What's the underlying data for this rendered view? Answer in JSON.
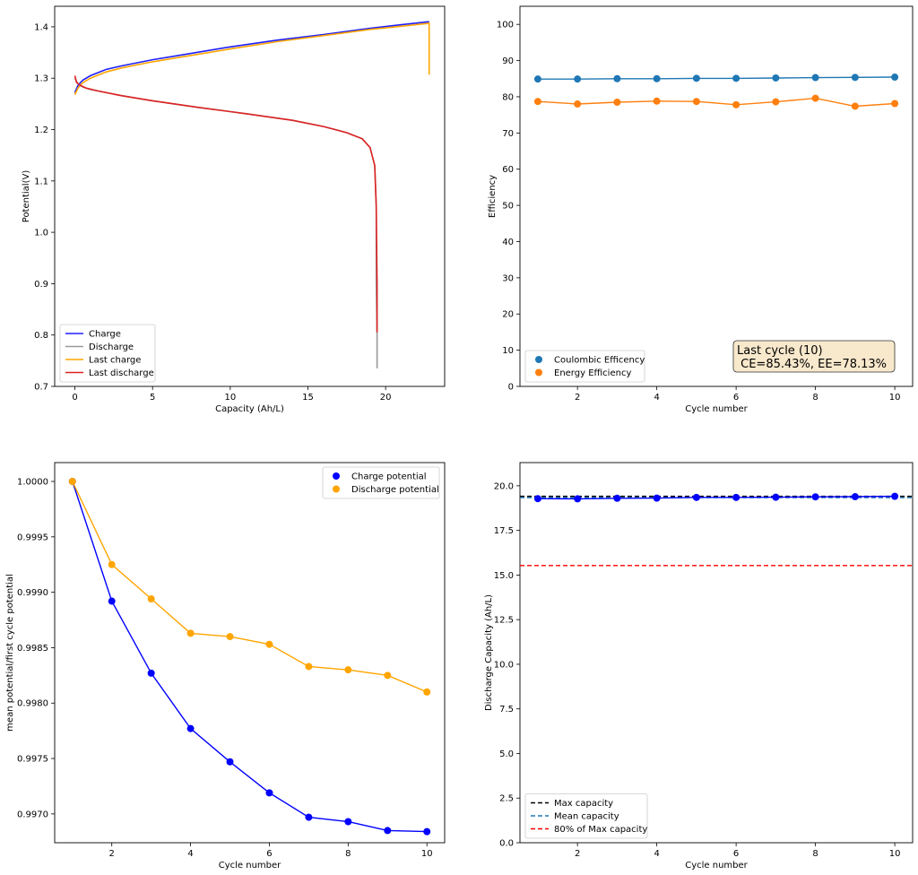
{
  "chart_data": [
    {
      "type": "line",
      "xlabel": "Capacity (Ah/L)",
      "ylabel": "Potential(V)",
      "xlim": [
        -1.3,
        23.8
      ],
      "ylim": [
        0.7,
        1.44
      ],
      "xticks": [
        "0",
        "5",
        "10",
        "15",
        "20"
      ],
      "yticks": [
        "0.7",
        "0.8",
        "0.9",
        "1.0",
        "1.1",
        "1.2",
        "1.3",
        "1.4"
      ],
      "legend_position": "lower-left",
      "series": [
        {
          "name": "Charge",
          "color": "#1f1fff",
          "x": [
            0,
            0.2,
            0.5,
            1,
            2,
            3,
            5,
            7,
            10,
            13,
            16,
            19,
            21,
            22.8
          ],
          "y": [
            1.272,
            1.286,
            1.296,
            1.305,
            1.317,
            1.324,
            1.336,
            1.346,
            1.361,
            1.374,
            1.385,
            1.397,
            1.404,
            1.41
          ]
        },
        {
          "name": "Discharge",
          "color": "#999999",
          "x": [
            0,
            0.2,
            0.5,
            1,
            3,
            5,
            8,
            11,
            14,
            16,
            17.5,
            18.5,
            19.0,
            19.3,
            19.4,
            19.4,
            19.45,
            19.45
          ],
          "y": [
            1.3,
            1.289,
            1.283,
            1.278,
            1.266,
            1.256,
            1.243,
            1.231,
            1.218,
            1.206,
            1.194,
            1.182,
            1.165,
            1.13,
            1.05,
            0.9,
            0.8,
            0.735
          ]
        },
        {
          "name": "Last charge",
          "color": "#ffa500",
          "x": [
            0,
            0.2,
            0.5,
            1,
            2,
            3,
            5,
            7,
            10,
            13,
            16,
            19,
            21,
            22.8,
            22.8
          ],
          "y": [
            1.268,
            1.281,
            1.291,
            1.3,
            1.312,
            1.32,
            1.332,
            1.342,
            1.357,
            1.371,
            1.383,
            1.395,
            1.401,
            1.407,
            1.307
          ]
        },
        {
          "name": "Last discharge",
          "color": "#dd2222",
          "x": [
            0,
            0.1,
            0.3,
            0.7,
            1.5,
            3,
            5,
            8,
            11,
            14,
            16,
            17.5,
            18.5,
            19.0,
            19.3,
            19.4,
            19.45,
            19.45
          ],
          "y": [
            1.305,
            1.292,
            1.287,
            1.281,
            1.275,
            1.266,
            1.256,
            1.243,
            1.231,
            1.218,
            1.206,
            1.194,
            1.182,
            1.165,
            1.13,
            1.05,
            0.9,
            0.805
          ]
        }
      ]
    },
    {
      "type": "line",
      "xlabel": "Cycle number",
      "ylabel": "Efficiency",
      "xlim": [
        0.55,
        10.45
      ],
      "ylim": [
        0,
        105
      ],
      "xticks": [
        "2",
        "4",
        "6",
        "8",
        "10"
      ],
      "yticks": [
        "0",
        "10",
        "20",
        "30",
        "40",
        "50",
        "60",
        "70",
        "80",
        "90",
        "100"
      ],
      "legend_position": "lower-left",
      "annotation": "Last cycle (10)\n CE=85.43%, EE=78.13%",
      "annotation_lines": [
        "Last cycle (10)",
        " CE=85.43%, EE=78.13%"
      ],
      "annotation_bg": "#f8e8cc",
      "series": [
        {
          "name": "Coulombic Efficency",
          "color": "#1f77b4",
          "x": [
            1,
            2,
            3,
            4,
            5,
            6,
            7,
            8,
            9,
            10
          ],
          "y": [
            84.9,
            84.9,
            85.0,
            85.0,
            85.1,
            85.1,
            85.2,
            85.3,
            85.35,
            85.43
          ]
        },
        {
          "name": "Energy Efficiency",
          "color": "#ff7f0e",
          "x": [
            1,
            2,
            3,
            4,
            5,
            6,
            7,
            8,
            9,
            10
          ],
          "y": [
            78.7,
            78.0,
            78.5,
            78.8,
            78.7,
            77.8,
            78.6,
            79.6,
            77.4,
            78.13
          ]
        }
      ]
    },
    {
      "type": "line",
      "xlabel": "Cycle number",
      "ylabel": "mean potential/first cycle potential",
      "xlim": [
        0.55,
        10.45
      ],
      "ylim": [
        0.99674,
        1.00017
      ],
      "xticks": [
        "2",
        "4",
        "6",
        "8",
        "10"
      ],
      "yticks": [
        "0.9970",
        "0.9975",
        "0.9980",
        "0.9985",
        "0.9990",
        "0.9995",
        "1.0000"
      ],
      "legend_position": "top-right",
      "series": [
        {
          "name": "Charge potential",
          "color": "#0000ff",
          "x": [
            1,
            2,
            3,
            4,
            5,
            6,
            7,
            8,
            9,
            10
          ],
          "y": [
            1.0,
            0.99892,
            0.99827,
            0.99777,
            0.99747,
            0.99719,
            0.99697,
            0.99693,
            0.99685,
            0.99684
          ]
        },
        {
          "name": "Discharge potential",
          "color": "#ffa500",
          "x": [
            1,
            2,
            3,
            4,
            5,
            6,
            7,
            8,
            9,
            10
          ],
          "y": [
            1.0,
            0.99925,
            0.99894,
            0.99863,
            0.9986,
            0.99853,
            0.99833,
            0.9983,
            0.99825,
            0.9981
          ]
        }
      ]
    },
    {
      "type": "line",
      "xlabel": "Cycle number",
      "ylabel": "Discharge Capacity (Ah/L)",
      "xlim": [
        0.55,
        10.45
      ],
      "ylim": [
        0,
        21.3
      ],
      "xticks": [
        "2",
        "4",
        "6",
        "8",
        "10"
      ],
      "yticks": [
        "0.0",
        "2.5",
        "5.0",
        "7.5",
        "10.0",
        "12.5",
        "15.0",
        "17.5",
        "20.0"
      ],
      "legend_position": "lower-left",
      "series": [
        {
          "name": "",
          "color": "#0000ff",
          "markers": true,
          "x": [
            1,
            2,
            3,
            4,
            5,
            6,
            7,
            8,
            9,
            10
          ],
          "y": [
            19.28,
            19.27,
            19.3,
            19.31,
            19.35,
            19.35,
            19.36,
            19.38,
            19.39,
            19.41
          ]
        }
      ],
      "hlines": [
        {
          "name": "Max capacity",
          "value": 19.41,
          "color": "#000000"
        },
        {
          "name": "Mean capacity",
          "value": 19.34,
          "color": "#1f77b4"
        },
        {
          "name": "80% of Max capacity",
          "value": 15.53,
          "color": "#ff0000"
        }
      ]
    }
  ]
}
